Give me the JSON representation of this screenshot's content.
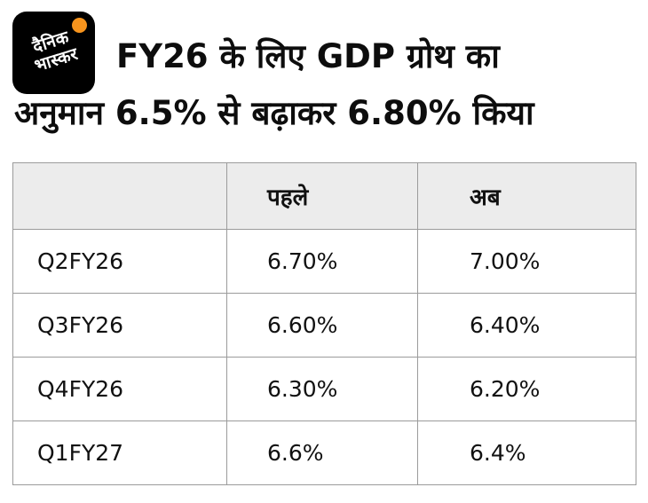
{
  "logo": {
    "text_line1": "दैनिक",
    "text_line2": "भास्कर",
    "sun_color": "#f7941d",
    "bg_color": "#000000"
  },
  "title": {
    "line1": "FY26 के लिए GDP ग्रोथ का",
    "line2": "अनुमान 6.5% से बढ़ाकर 6.80% किया"
  },
  "chart_data": {
    "type": "table",
    "title": "FY26 के लिए GDP ग्रोथ का अनुमान 6.5% से बढ़ाकर 6.80% किया",
    "columns": [
      "",
      "पहले",
      "अब"
    ],
    "rows": [
      [
        "Q2FY26",
        "6.70%",
        "7.00%"
      ],
      [
        "Q3FY26",
        "6.60%",
        "6.40%"
      ],
      [
        "Q4FY26",
        "6.30%",
        "6.20%"
      ],
      [
        "Q1FY27",
        "6.6%",
        "6.4%"
      ]
    ],
    "header_bg": "#ececec",
    "border_color": "#9b9b9b"
  }
}
